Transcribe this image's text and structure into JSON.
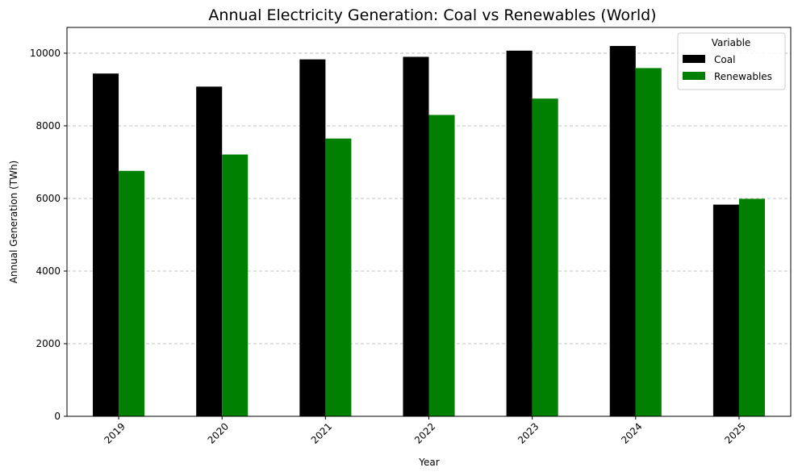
{
  "chart_data": {
    "type": "bar",
    "title": "Annual Electricity Generation: Coal vs Renewables (World)",
    "xlabel": "Year",
    "ylabel": "Annual Generation (TWh)",
    "categories": [
      "2019",
      "2020",
      "2021",
      "2022",
      "2023",
      "2024",
      "2025"
    ],
    "series": [
      {
        "name": "Coal",
        "color": "#000000",
        "values": [
          9440,
          9080,
          9830,
          9900,
          10070,
          10200,
          5830
        ]
      },
      {
        "name": "Renewables",
        "color": "#008000",
        "values": [
          6760,
          7210,
          7650,
          8300,
          8750,
          9590,
          5990
        ]
      }
    ],
    "ylim": [
      0,
      10710
    ],
    "yticks": [
      0,
      2000,
      4000,
      6000,
      8000,
      10000
    ],
    "ytick_labels": [
      "0",
      "2000",
      "4000",
      "6000",
      "8000",
      "10000"
    ],
    "grid": "y-dashed",
    "legend": {
      "title": "Variable",
      "position": "top-right"
    }
  }
}
